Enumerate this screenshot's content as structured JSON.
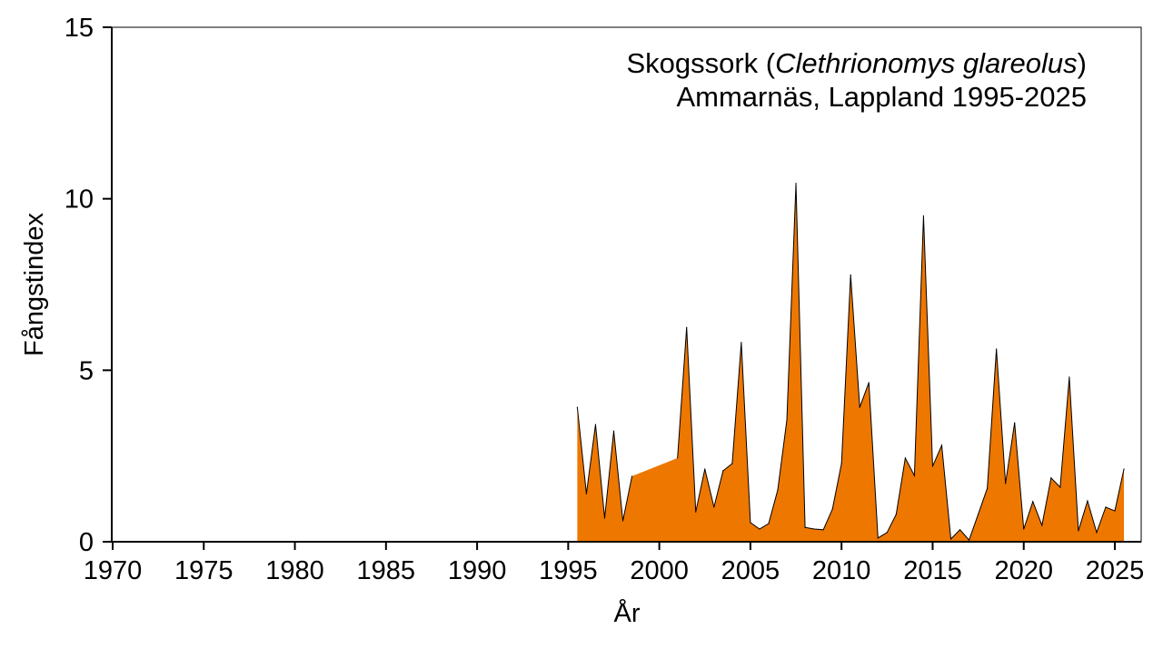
{
  "chart_data": {
    "type": "area",
    "title_common": "Skogssork",
    "title_latin": "Clethrionomys glareolus",
    "subtitle": "Ammarnäs, Lappland 1995-2025",
    "xlabel": "År",
    "ylabel": "Fångstindex",
    "xlim": [
      1970,
      2026.5
    ],
    "ylim": [
      0,
      15
    ],
    "xticks": [
      "1970",
      "1975",
      "1980",
      "1985",
      "1990",
      "1995",
      "2000",
      "2005",
      "2010",
      "2015",
      "2020",
      "2025"
    ],
    "yticks": [
      "0",
      "5",
      "10",
      "15"
    ],
    "grid": false,
    "fill_color": "#EE7700",
    "line_color": "#000000",
    "x": [
      1995.5,
      1996,
      1996.5,
      1997,
      1997.5,
      1998,
      1998.5,
      1999,
      1999.5,
      2000,
      2000.5,
      2001,
      2001.5,
      2002,
      2002.5,
      2003,
      2003.5,
      2004,
      2004.5,
      2005,
      2005.5,
      2006,
      2006.5,
      2007,
      2007.5,
      2008,
      2008.5,
      2009,
      2009.5,
      2010,
      2010.5,
      2011,
      2011.5,
      2012,
      2012.5,
      2013,
      2013.5,
      2014,
      2014.5,
      2015,
      2015.5,
      2016,
      2016.5,
      2017,
      2017.5,
      2018,
      2018.5,
      2019,
      2019.5,
      2020,
      2020.5,
      2021,
      2021.5,
      2022,
      2022.5,
      2023,
      2023.5,
      2024,
      2024.5,
      2025,
      2025.5
    ],
    "values": [
      3.92,
      1.4,
      3.42,
      0.69,
      3.23,
      0.61,
      1.91,
      null,
      null,
      null,
      null,
      2.44,
      6.25,
      0.87,
      2.12,
      1.01,
      2.07,
      2.28,
      5.81,
      0.56,
      0.37,
      0.53,
      1.51,
      3.55,
      10.45,
      0.42,
      0.37,
      0.35,
      0.95,
      2.28,
      7.78,
      3.92,
      4.64,
      0.11,
      0.27,
      0.8,
      2.44,
      1.93,
      9.5,
      2.2,
      2.81,
      0.08,
      0.35,
      0.05,
      0.8,
      1.56,
      5.62,
      1.7,
      3.47,
      0.37,
      1.17,
      0.48,
      1.86,
      1.59,
      4.8,
      0.32,
      1.19,
      0.27,
      1.01,
      0.9,
      2.12
    ]
  }
}
